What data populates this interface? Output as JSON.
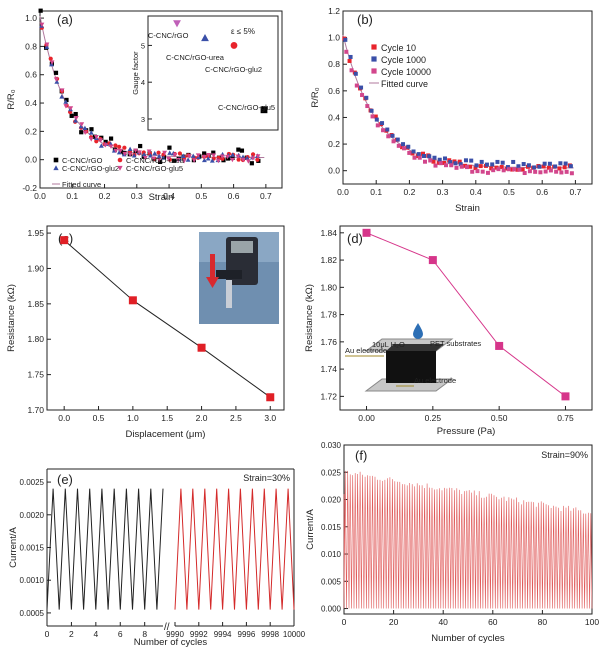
{
  "chart_data": [
    {
      "panel": "(a)",
      "type": "scatter",
      "xlabel": "Strain",
      "ylabel": "R/R₀",
      "xlim": [
        0,
        0.75
      ],
      "ylim": [
        -0.2,
        1.05
      ],
      "xticks": [
        "0.0",
        "0.1",
        "0.2",
        "0.3",
        "0.4",
        "0.5",
        "0.6",
        "0.7"
      ],
      "yticks": [
        "-0.2",
        "0.0",
        "0.2",
        "0.4",
        "0.6",
        "0.8",
        "1.0"
      ],
      "series": [
        {
          "name": "C-CNC/rGO",
          "color": "#000000",
          "marker": "square"
        },
        {
          "name": "C-CNC/rGO-urea",
          "color": "#e8242c",
          "marker": "circle"
        },
        {
          "name": "C-CNC/rGO-glu2",
          "color": "#3a4fa8",
          "marker": "triangle-up"
        },
        {
          "name": "C-CNC/rGO-glu5",
          "color": "#d2468c",
          "marker": "triangle-down"
        }
      ],
      "fit_label": "Fitted curve",
      "inset": {
        "ylabel": "Gauge factor",
        "yticks": [
          "3",
          "4",
          "5"
        ],
        "ylim": [
          2.7,
          5.8
        ],
        "annotation": "ε ≤ 5%",
        "points": [
          {
            "label": "C-CNC/rGO",
            "value": 5.6,
            "color": "#c060b8",
            "marker": "triangle-down"
          },
          {
            "label": "C-CNC/rGO-urea",
            "value": 5.2,
            "color": "#3a4fa8",
            "marker": "triangle-up"
          },
          {
            "label": "C-CNC/rGO-glu2",
            "value": 5.0,
            "color": "#e8242c",
            "marker": "circle"
          },
          {
            "label": "C-CNC/rGO-glu5",
            "value": 3.25,
            "color": "#000000",
            "marker": "square"
          }
        ]
      }
    },
    {
      "panel": "(b)",
      "type": "scatter",
      "xlabel": "Strain",
      "ylabel": "R/R₀",
      "xlim": [
        0,
        0.75
      ],
      "ylim": [
        -0.1,
        1.2
      ],
      "xticks": [
        "0.0",
        "0.1",
        "0.2",
        "0.3",
        "0.4",
        "0.5",
        "0.6",
        "0.7"
      ],
      "yticks": [
        "0.0",
        "0.2",
        "0.4",
        "0.6",
        "0.8",
        "1.0",
        "1.2"
      ],
      "series": [
        {
          "name": "Cycle 10",
          "color": "#e8242c",
          "marker": "square"
        },
        {
          "name": "Cycle 1000",
          "color": "#3a4fa8",
          "marker": "square"
        },
        {
          "name": "Cycle 10000",
          "color": "#d2468c",
          "marker": "square"
        }
      ],
      "fit_label": "Fitted curve"
    },
    {
      "panel": "(c)",
      "type": "line",
      "xlabel": "Displacement (μm)",
      "ylabel": "Resistance (kΩ)",
      "x": [
        0.0,
        1.0,
        2.0,
        3.0
      ],
      "values": [
        1.94,
        1.855,
        1.788,
        1.718
      ],
      "xlim": [
        -0.25,
        3.2
      ],
      "ylim": [
        1.7,
        1.96
      ],
      "xticks": [
        "0.0",
        "0.5",
        "1.0",
        "1.5",
        "2.0",
        "2.5",
        "3.0"
      ],
      "yticks": [
        "1.70",
        "1.75",
        "1.80",
        "1.85",
        "1.90",
        "1.95"
      ]
    },
    {
      "panel": "(d)",
      "type": "line",
      "xlabel": "Pressure (Pa)",
      "ylabel": "Resistance (kΩ)",
      "x": [
        0.0,
        0.25,
        0.5,
        0.75
      ],
      "values": [
        1.84,
        1.82,
        1.757,
        1.72
      ],
      "xlim": [
        -0.1,
        0.85
      ],
      "ylim": [
        1.71,
        1.845
      ],
      "xticks": [
        "0.00",
        "0.25",
        "0.50",
        "0.75"
      ],
      "yticks": [
        "1.72",
        "1.74",
        "1.76",
        "1.78",
        "1.80",
        "1.82",
        "1.84"
      ],
      "inset_labels": {
        "drop": "10μL H₂O",
        "substrate": "PET substrates",
        "top_electrode": "Au electrode",
        "bottom_electrode": "Au electrode"
      }
    },
    {
      "panel": "(e)",
      "type": "line",
      "xlabel": "Number of cycles",
      "ylabel": "Current/A",
      "annotation": "Strain=30%",
      "ylim": [
        0.0003,
        0.0027
      ],
      "yticks": [
        "0.0005",
        "0.0010",
        "0.0015",
        "0.0020",
        "0.0025"
      ],
      "xticks_left": [
        "0",
        "2",
        "4",
        "6",
        "8"
      ],
      "xticks_right": [
        "9990",
        "9992",
        "9994",
        "9996",
        "9998",
        "10000"
      ],
      "xlim_left": [
        0,
        9.5
      ],
      "xlim_right": [
        9990,
        10000
      ],
      "current_min": 0.00055,
      "current_max": 0.0024,
      "series": [
        {
          "segment": "cycles 0-9.5",
          "color": "#222222"
        },
        {
          "segment": "cycles 9990-10000",
          "color": "#d42a2a"
        }
      ]
    },
    {
      "panel": "(f)",
      "type": "line",
      "xlabel": "Number of cycles",
      "ylabel": "Current/A",
      "annotation": "Strain=90%",
      "xlim": [
        0,
        100
      ],
      "ylim": [
        -0.001,
        0.03
      ],
      "xticks": [
        "0",
        "20",
        "40",
        "60",
        "80",
        "100"
      ],
      "yticks": [
        "0.000",
        "0.005",
        "0.010",
        "0.015",
        "0.020",
        "0.025",
        "0.030"
      ],
      "current_min": 0.0,
      "peak_start": 0.025,
      "peak_end": 0.0175,
      "color": "#e05a5a"
    }
  ]
}
